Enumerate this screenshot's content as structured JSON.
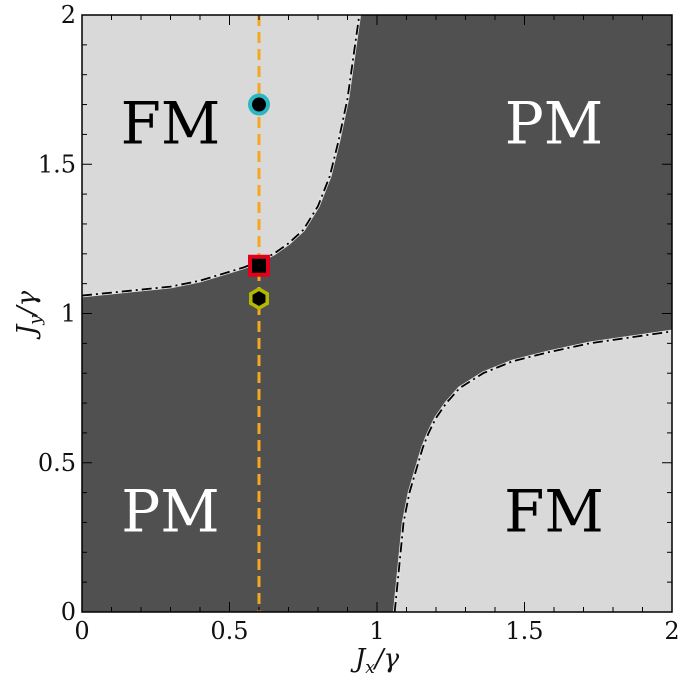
{
  "chart_data": {
    "type": "heatmap",
    "title": "",
    "xlabel": {
      "main": "J",
      "sub": "x",
      "rest": "/γ"
    },
    "ylabel": {
      "main": "J",
      "sub": "y",
      "rest": "/γ"
    },
    "xlim": [
      0,
      2
    ],
    "ylim": [
      0,
      2
    ],
    "xticks": [
      0,
      0.5,
      1,
      1.5,
      2
    ],
    "yticks": [
      0,
      0.5,
      1,
      1.5,
      2
    ],
    "xtick_labels": [
      "0",
      "0.5",
      "1",
      "1.5",
      "2"
    ],
    "ytick_labels": [
      "0",
      "0.5",
      "1",
      "1.5",
      "2"
    ],
    "grid": false,
    "colors": {
      "FM": "#d9d9d9",
      "PM": "#505050",
      "boundary": "#000000",
      "boundary_glow": "#e0e0e0",
      "cut_line": "#f5a623"
    },
    "regions": [
      {
        "label": "FM",
        "x": 0.3,
        "y": 1.62,
        "color": "#000000"
      },
      {
        "label": "PM",
        "x": 1.6,
        "y": 1.62,
        "color": "#ffffff"
      },
      {
        "label": "PM",
        "x": 0.3,
        "y": 0.32,
        "color": "#ffffff"
      },
      {
        "label": "FM",
        "x": 1.6,
        "y": 0.32,
        "color": "#000000"
      }
    ],
    "phase_boundary_upper": [
      [
        0,
        1.06
      ],
      [
        0.1,
        1.07
      ],
      [
        0.2,
        1.08
      ],
      [
        0.3,
        1.09
      ],
      [
        0.4,
        1.11
      ],
      [
        0.45,
        1.125
      ],
      [
        0.5,
        1.14
      ],
      [
        0.55,
        1.155
      ],
      [
        0.6,
        1.175
      ],
      [
        0.65,
        1.2
      ],
      [
        0.7,
        1.235
      ],
      [
        0.75,
        1.28
      ],
      [
        0.8,
        1.36
      ],
      [
        0.84,
        1.46
      ],
      [
        0.87,
        1.58
      ],
      [
        0.9,
        1.72
      ],
      [
        0.92,
        1.86
      ],
      [
        0.94,
        2.0
      ]
    ],
    "phase_boundary_lower": [
      [
        1.06,
        0
      ],
      [
        1.07,
        0.1
      ],
      [
        1.08,
        0.2
      ],
      [
        1.09,
        0.3
      ],
      [
        1.11,
        0.4
      ],
      [
        1.125,
        0.45
      ],
      [
        1.14,
        0.5
      ],
      [
        1.155,
        0.55
      ],
      [
        1.175,
        0.6
      ],
      [
        1.2,
        0.65
      ],
      [
        1.235,
        0.7
      ],
      [
        1.28,
        0.75
      ],
      [
        1.36,
        0.8
      ],
      [
        1.46,
        0.84
      ],
      [
        1.58,
        0.87
      ],
      [
        1.72,
        0.9
      ],
      [
        1.86,
        0.92
      ],
      [
        2.0,
        0.94
      ]
    ],
    "cut_line_x": 0.6,
    "markers": [
      {
        "shape": "circle",
        "x": 0.6,
        "y": 1.7,
        "edge": "#2bb6c4",
        "fill": "#000000"
      },
      {
        "shape": "square",
        "x": 0.6,
        "y": 1.16,
        "edge": "#e3001b",
        "fill": "#000000"
      },
      {
        "shape": "hexagon",
        "x": 0.6,
        "y": 1.05,
        "edge": "#b5b800",
        "fill": "#000000"
      }
    ]
  }
}
